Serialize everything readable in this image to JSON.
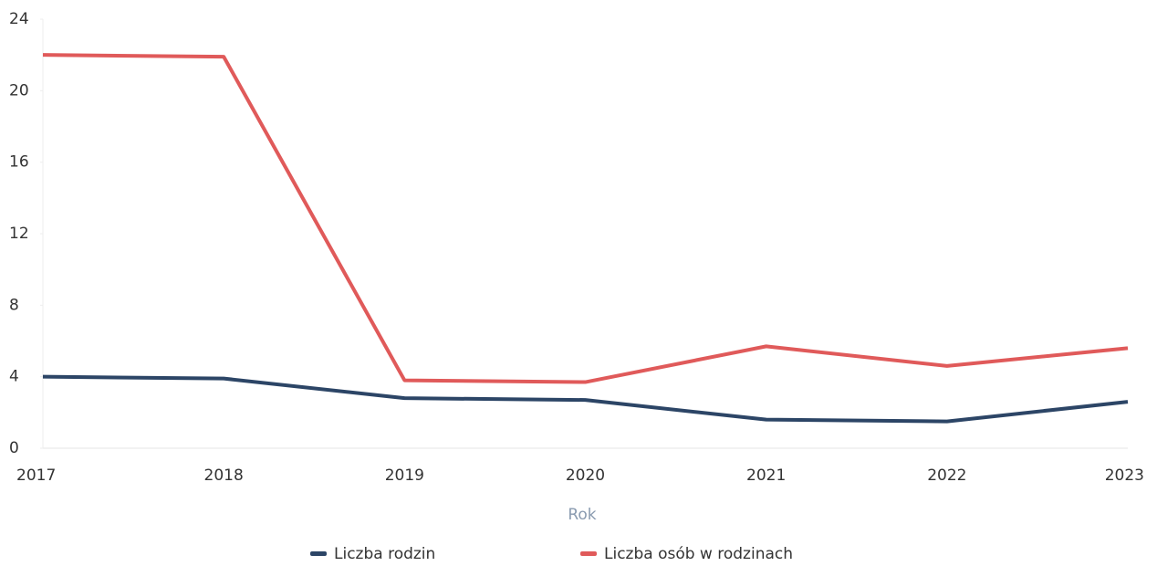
{
  "chart_data": {
    "type": "line",
    "x_label": "Rok",
    "categories": [
      "2017",
      "2018",
      "2019",
      "2020",
      "2021",
      "2022",
      "2023"
    ],
    "series": [
      {
        "name": "Liczba rodzin",
        "color": "#2c4566",
        "values": [
          4,
          3.9,
          2.8,
          2.7,
          1.6,
          1.5,
          2.6
        ]
      },
      {
        "name": "Liczba osób w rodzinach",
        "color": "#e05a5a",
        "values": [
          22,
          21.9,
          3.8,
          3.7,
          5.7,
          4.6,
          5.6
        ]
      }
    ],
    "ylim": [
      0,
      24
    ],
    "yticks": [
      0,
      4,
      8,
      12,
      16,
      20,
      24
    ],
    "grid": false,
    "legend": "bottom"
  }
}
